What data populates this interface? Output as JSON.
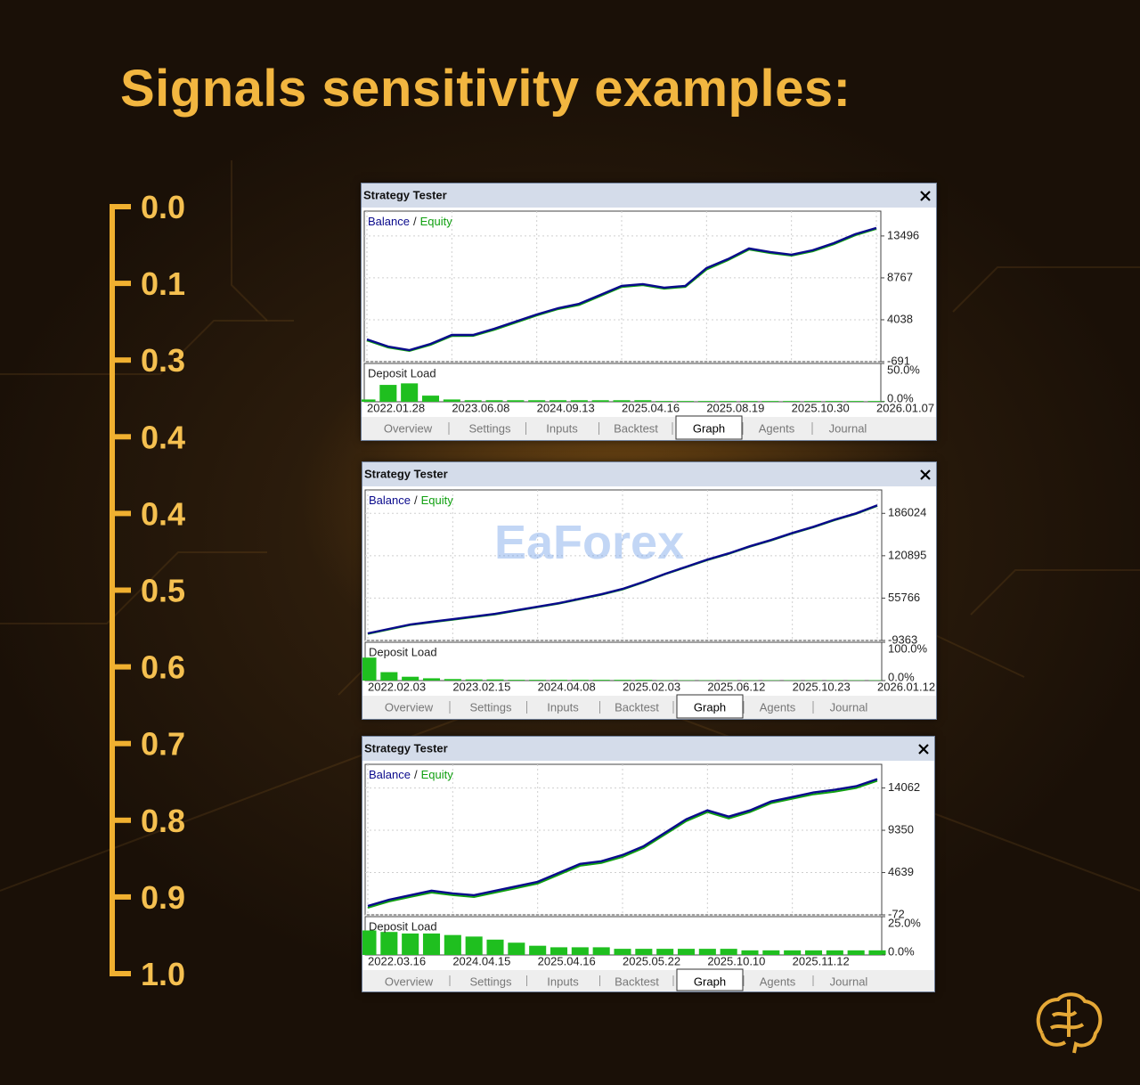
{
  "title": "Signals sensitivity examples:",
  "sensitivity_scale": [
    "0.0",
    "0.1",
    "0.3",
    "0.4",
    "0.4",
    "0.5",
    "0.6",
    "0.7",
    "0.8",
    "0.9",
    "1.0"
  ],
  "watermark": "EaForex",
  "windows": [
    {
      "title": "Strategy Tester",
      "tabs": [
        "Overview",
        "Settings",
        "Inputs",
        "Backtest",
        "Graph",
        "Agents",
        "Journal"
      ],
      "active_tab": 4
    },
    {
      "title": "Strategy Tester",
      "tabs": [
        "Overview",
        "Settings",
        "Inputs",
        "Backtest",
        "Graph",
        "Agents",
        "Journal"
      ],
      "active_tab": 4
    },
    {
      "title": "Strategy Tester",
      "tabs": [
        "Overview",
        "Settings",
        "Inputs",
        "Backtest",
        "Graph",
        "Agents",
        "Journal"
      ],
      "active_tab": 4
    }
  ],
  "chart_data": [
    {
      "type": "line",
      "legend_separator": "/",
      "grid": true,
      "categories": [
        "2022.01.28",
        null,
        null,
        null,
        "2023.06.08",
        null,
        null,
        null,
        "2024.09.13",
        null,
        null,
        null,
        "2025.04.16",
        null,
        null,
        null,
        "2025.08.19",
        null,
        null,
        null,
        "2025.10.30",
        null,
        null,
        null,
        "2026.01.07"
      ],
      "series": [
        {
          "name": "Balance",
          "color": "#0a0a8c",
          "values": [
            1824,
            1019,
            617,
            1321,
            2327,
            2327,
            3031,
            3836,
            4641,
            5345,
            5848,
            6854,
            7860,
            8061,
            7659,
            7860,
            9872,
            10878,
            12085,
            11683,
            11381,
            11884,
            12689,
            13695,
            14399
          ]
        },
        {
          "name": "Equity",
          "color": "#10a010",
          "values": [
            1700,
            900,
            520,
            1200,
            2200,
            2210,
            2900,
            3700,
            4520,
            5230,
            5700,
            6720,
            7730,
            7950,
            7540,
            7740,
            9700,
            10750,
            11960,
            11560,
            11270,
            11760,
            12560,
            13570,
            14300
          ]
        }
      ],
      "ylim": [
        -691,
        16300
      ],
      "yticks": [
        13496,
        8767,
        4038,
        -691
      ],
      "deposit_load": {
        "title": "Deposit Load",
        "type": "bar",
        "color": "#1fbf1f",
        "values": [
          3,
          22,
          24,
          8,
          3,
          2,
          2,
          2,
          2,
          2,
          2,
          2,
          2,
          2,
          1,
          1,
          1,
          1,
          1,
          1,
          1,
          1,
          1,
          1,
          1
        ],
        "ylim": [
          0,
          50
        ],
        "yticks": [
          {
            "value": 50,
            "label": "50.0%"
          },
          {
            "value": 0,
            "label": "0.0%"
          }
        ]
      }
    },
    {
      "type": "line",
      "legend_separator": "/",
      "grid": true,
      "categories": [
        "2022.02.03",
        null,
        null,
        null,
        "2023.02.15",
        null,
        null,
        null,
        "2024.04.08",
        null,
        null,
        null,
        "2025.02.03",
        null,
        null,
        null,
        "2025.06.12",
        null,
        null,
        null,
        "2025.10.23",
        null,
        null,
        null,
        "2026.01.12"
      ],
      "series": [
        {
          "name": "Balance",
          "color": "#0a0a8c",
          "values": [
            1565,
            8395,
            15225,
            19323,
            23421,
            27519,
            31617,
            37081,
            42545,
            48009,
            54839,
            61669,
            69865,
            80793,
            93087,
            104015,
            114943,
            124505,
            135433,
            144995,
            155923,
            165485,
            176413,
            185975,
            198269
          ]
        },
        {
          "name": "Equity",
          "color": "#10a010",
          "values": [
            800,
            7600,
            14400,
            18500,
            22600,
            26700,
            30800,
            36300,
            41700,
            47200,
            54000,
            60900,
            69000,
            80000,
            92300,
            103200,
            114100,
            123700,
            134600,
            144200,
            155100,
            164700,
            175600,
            185200,
            197400
          ]
        }
      ],
      "ylim": [
        -9363,
        222000
      ],
      "yticks": [
        186024,
        120895,
        55766,
        -9363
      ],
      "deposit_load": {
        "title": "Deposit Load",
        "type": "bar",
        "color": "#1fbf1f",
        "values": [
          60,
          22,
          10,
          6,
          4,
          3,
          3,
          2,
          2,
          2,
          2,
          2,
          2,
          2,
          1,
          1,
          1,
          1,
          1,
          1,
          1,
          1,
          1,
          1,
          1
        ],
        "ylim": [
          0,
          100
        ],
        "yticks": [
          {
            "value": 100,
            "label": "100.0%"
          },
          {
            "value": 0,
            "label": "0.0%"
          }
        ]
      }
    },
    {
      "type": "line",
      "legend_separator": "/",
      "grid": true,
      "categories": [
        "2022.03.16",
        null,
        null,
        null,
        "2024.04.15",
        null,
        null,
        null,
        "2025.04.16",
        null,
        null,
        null,
        "2025.05.22",
        null,
        null,
        null,
        "2025.10.10",
        null,
        null,
        null,
        "2025.11.12",
        null,
        null,
        null,
        null
      ],
      "series": [
        {
          "name": "Balance",
          "color": "#0a0a8c",
          "values": [
            923,
            1620,
            2117,
            2615,
            2316,
            2117,
            2615,
            3112,
            3610,
            4605,
            5600,
            5898,
            6595,
            7590,
            9082,
            10575,
            11570,
            10873,
            11570,
            12565,
            13062,
            13560,
            13858,
            14256,
            15052
          ]
        },
        {
          "name": "Equity",
          "color": "#10a010",
          "values": [
            720,
            1420,
            1920,
            2410,
            2120,
            1910,
            2410,
            2910,
            3410,
            4400,
            5400,
            5700,
            6390,
            7390,
            8880,
            10370,
            11370,
            10670,
            11370,
            12360,
            12860,
            13360,
            13650,
            14050,
            14850
          ]
        }
      ],
      "ylim": [
        -72,
        16700
      ],
      "yticks": [
        14062,
        9350,
        4639,
        -72
      ],
      "deposit_load": {
        "title": "Deposit Load",
        "type": "bar",
        "color": "#1fbf1f",
        "values": [
          16,
          15,
          14,
          14,
          13,
          12,
          10,
          8,
          6,
          5,
          5,
          5,
          4,
          4,
          4,
          4,
          4,
          4,
          3,
          3,
          3,
          3,
          3,
          3,
          3
        ],
        "ylim": [
          0,
          25
        ],
        "yticks": [
          {
            "value": 25,
            "label": "25.0%"
          },
          {
            "value": 0,
            "label": "0.0%"
          }
        ]
      }
    }
  ]
}
